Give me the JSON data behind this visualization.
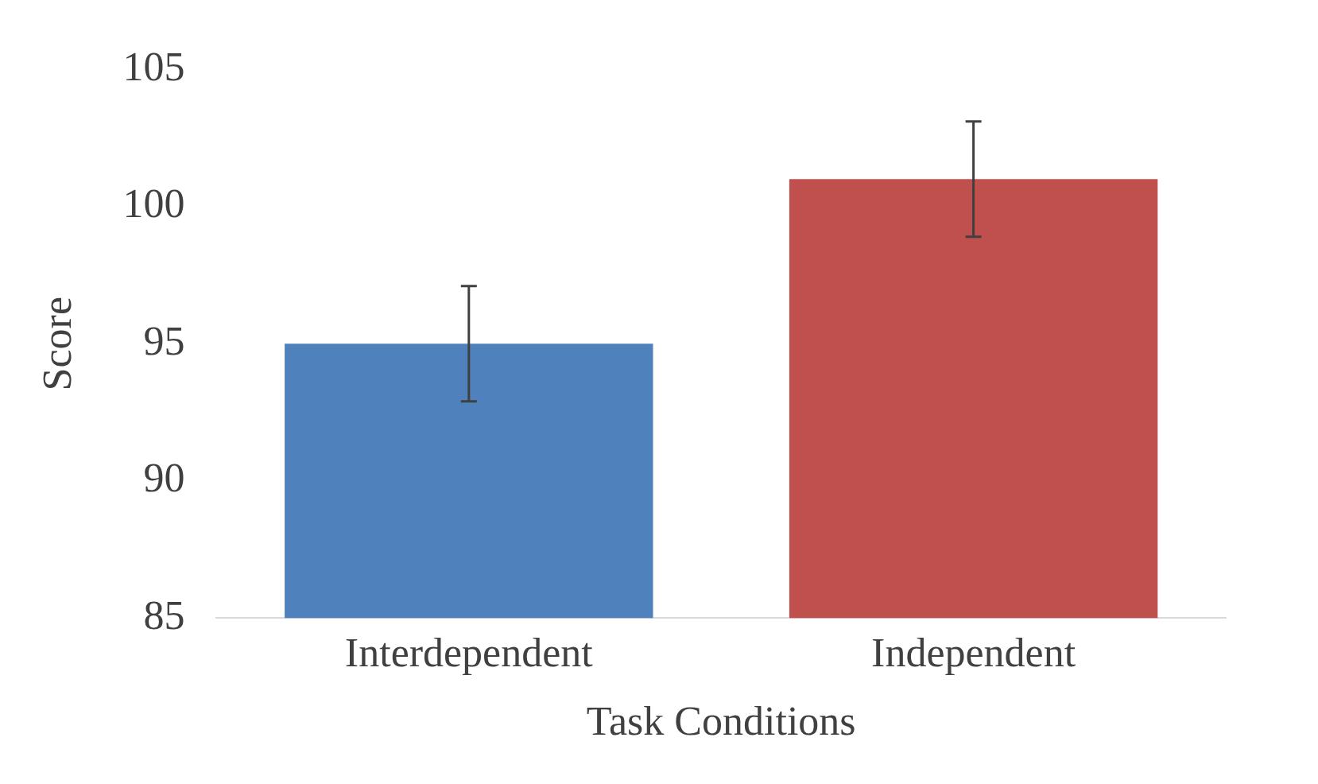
{
  "chart_data": {
    "type": "bar",
    "xlabel": "Task Conditions",
    "ylabel": "Score",
    "categories": [
      "Interdependent",
      "Independent"
    ],
    "values": [
      95,
      101
    ],
    "colors": [
      "#4f81bd",
      "#c0504d"
    ],
    "errors": [
      2.1,
      2.1
    ],
    "ylim": [
      85,
      105
    ],
    "yticks": [
      85,
      90,
      95,
      100,
      105
    ],
    "grid": false,
    "legend": false
  }
}
